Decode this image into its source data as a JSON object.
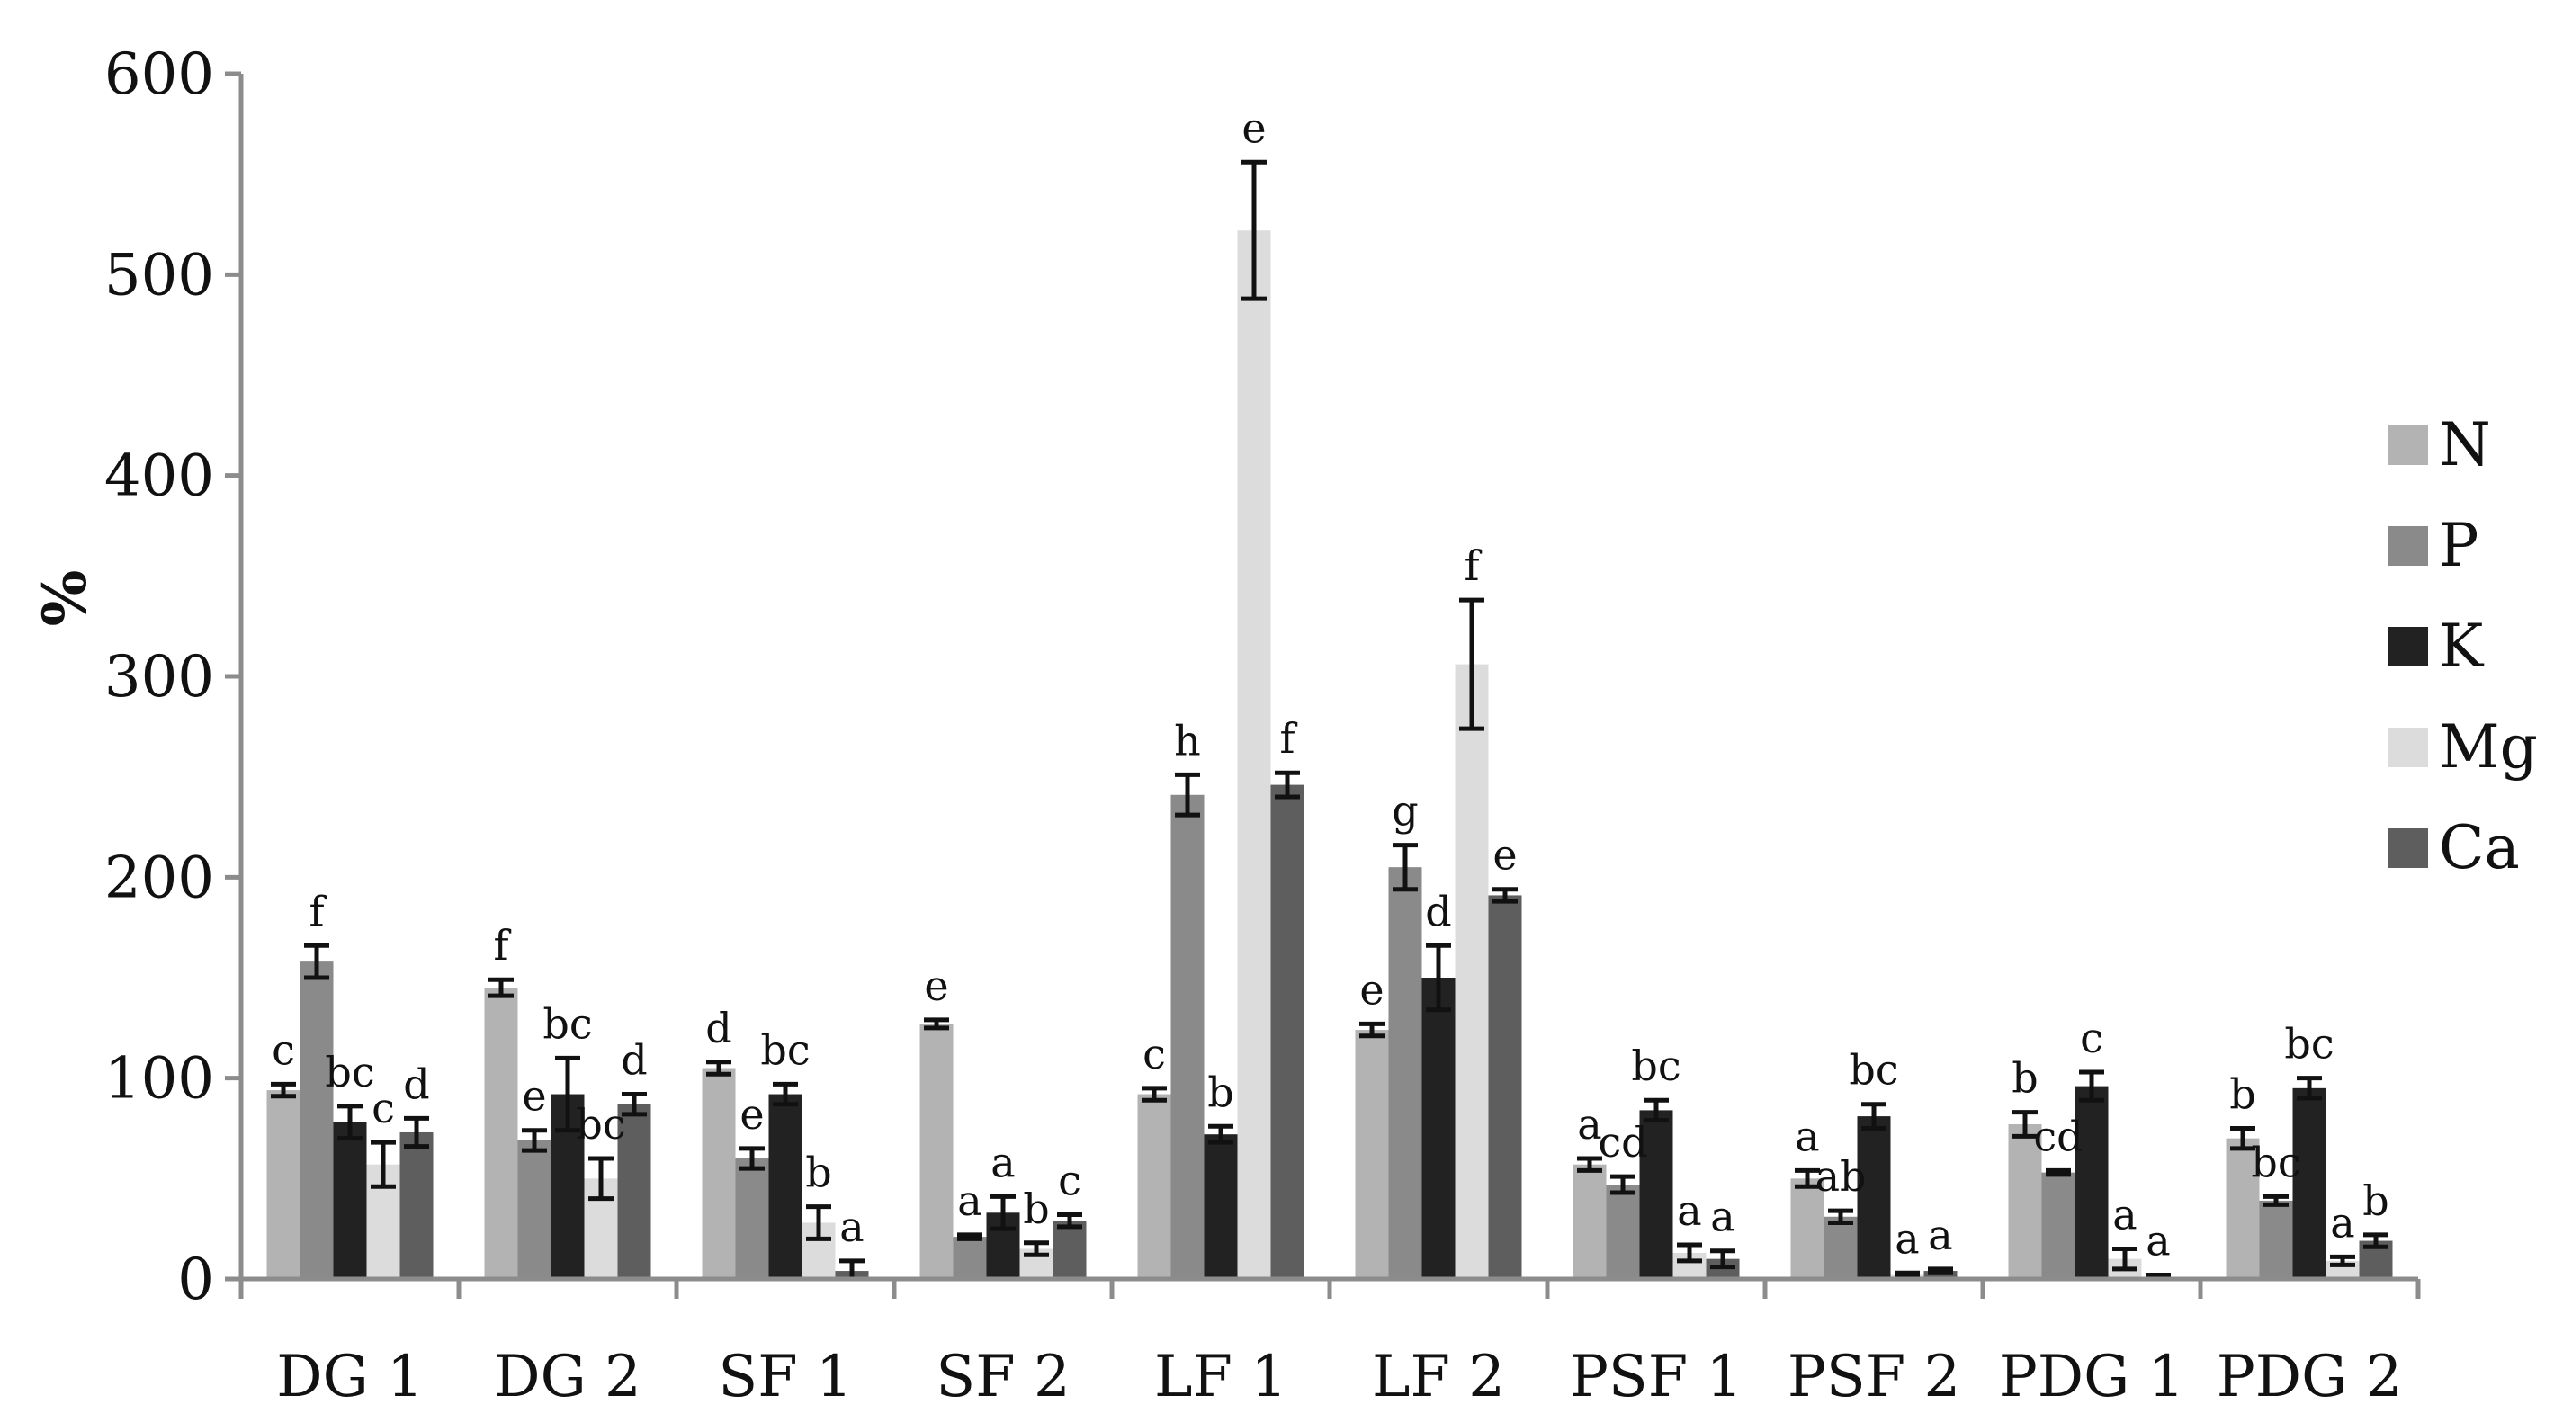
{
  "chart_data": {
    "type": "bar",
    "title": "",
    "xlabel": "",
    "ylabel": "%",
    "ylim": [
      0,
      600
    ],
    "yticks": [
      "0",
      "100",
      "200",
      "300",
      "400",
      "500",
      "600"
    ],
    "grid": false,
    "legend_position": "right",
    "categories": [
      "DG 1",
      "DG 2",
      "SF 1",
      "SF 2",
      "LF 1",
      "LF 2",
      "PSF 1",
      "PSF 2",
      "PDG 1",
      "PDG 2"
    ],
    "series": [
      {
        "name": "N",
        "color": "#b3b3b3",
        "values": [
          94,
          145,
          105,
          127,
          92,
          124,
          57,
          50,
          77,
          70
        ],
        "errors": [
          3,
          4,
          3,
          2,
          3,
          3,
          3,
          4,
          6,
          5
        ],
        "letters": [
          "c",
          "f",
          "d",
          "e",
          "c",
          "e",
          "a",
          "a",
          "b",
          "b"
        ]
      },
      {
        "name": "P",
        "color": "#8a8a8a",
        "values": [
          158,
          69,
          60,
          21,
          241,
          205,
          47,
          31,
          53,
          39
        ],
        "errors": [
          8,
          5,
          5,
          1,
          10,
          11,
          4,
          3,
          1,
          2
        ],
        "letters": [
          "f",
          "e",
          "e",
          "a",
          "h",
          "g",
          "cd",
          "ab",
          "cd",
          "bc"
        ]
      },
      {
        "name": "K",
        "color": "#222222",
        "values": [
          78,
          92,
          92,
          33,
          72,
          150,
          84,
          81,
          96,
          95
        ],
        "errors": [
          8,
          18,
          5,
          8,
          4,
          16,
          5,
          6,
          7,
          5
        ],
        "letters": [
          "bc",
          "bc",
          "bc",
          "a",
          "b",
          "d",
          "bc",
          "bc",
          "c",
          "bc"
        ]
      },
      {
        "name": "Mg",
        "color": "#dcdcdc",
        "values": [
          57,
          50,
          28,
          15,
          522,
          306,
          13,
          2,
          10,
          9
        ],
        "errors": [
          11,
          10,
          8,
          3,
          34,
          32,
          4,
          1,
          5,
          2
        ],
        "letters": [
          "c",
          "bc",
          "b",
          "b",
          "e",
          "f",
          "a",
          "a",
          "a",
          "a"
        ]
      },
      {
        "name": "Ca",
        "color": "#5e5e5e",
        "values": [
          73,
          87,
          4,
          29,
          246,
          191,
          10,
          4,
          1,
          19
        ],
        "errors": [
          7,
          5,
          5,
          3,
          6,
          3,
          4,
          1,
          1,
          3
        ],
        "letters": [
          "d",
          "d",
          "a",
          "c",
          "f",
          "e",
          "a",
          "a",
          "a",
          "b"
        ]
      }
    ]
  }
}
